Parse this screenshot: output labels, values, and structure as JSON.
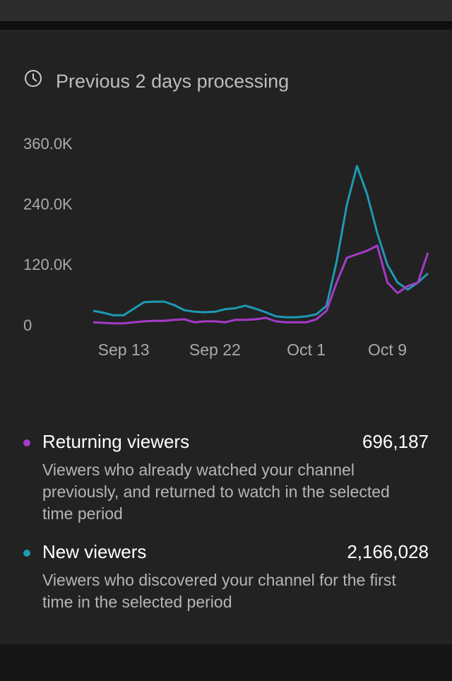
{
  "header": {
    "title": "Previous 2 days processing"
  },
  "chart_data": {
    "type": "line",
    "categories": [
      null,
      null,
      null,
      "Sep 13",
      null,
      null,
      null,
      null,
      null,
      null,
      null,
      null,
      "Sep 22",
      null,
      null,
      null,
      null,
      null,
      null,
      null,
      null,
      "Oct 1",
      null,
      null,
      null,
      null,
      null,
      null,
      null,
      "Oct 9",
      null,
      null,
      null,
      null
    ],
    "series": [
      {
        "name": "Returning viewers",
        "color": "#a53bc8",
        "values": [
          8000,
          7000,
          6000,
          6000,
          8000,
          10000,
          11000,
          11000,
          13000,
          14000,
          8000,
          10000,
          10000,
          8000,
          13000,
          13000,
          14000,
          17000,
          10000,
          8000,
          8000,
          8000,
          14000,
          31000,
          87000,
          136000,
          143000,
          150000,
          160000,
          87000,
          66000,
          80000,
          87000,
          146000
        ]
      },
      {
        "name": "New viewers",
        "color": "#1e9ab3",
        "values": [
          31000,
          27000,
          22000,
          22000,
          35000,
          48000,
          49000,
          49000,
          42000,
          32000,
          29000,
          28000,
          29000,
          34000,
          36000,
          41000,
          35000,
          28000,
          20000,
          18000,
          18000,
          20000,
          24000,
          41000,
          129000,
          241000,
          318000,
          262000,
          185000,
          122000,
          87000,
          73000,
          87000,
          105000
        ]
      }
    ],
    "ylim": [
      0,
      360000
    ],
    "yticks": [
      0,
      {
        "value": 120000,
        "label": "120.0K"
      },
      {
        "value": 240000,
        "label": "240.0K"
      },
      {
        "value": 360000,
        "label": "360.0K"
      }
    ],
    "grid": false
  },
  "legend": [
    {
      "total": "696,187",
      "description": "Viewers who already watched your channel previously, and returned to watch in the selected time period"
    },
    {
      "total": "2,166,028",
      "description": "Viewers who discovered your channel for the first time in the selected period"
    }
  ]
}
